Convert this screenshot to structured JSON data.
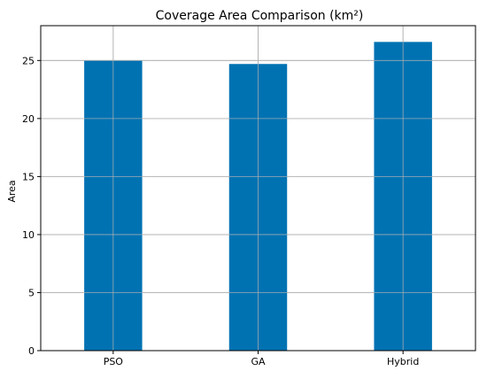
{
  "chart_data": {
    "type": "bar",
    "title": "Coverage Area Comparison (km²)",
    "xlabel": "",
    "ylabel": "Area",
    "categories": [
      "PSO",
      "GA",
      "Hybrid"
    ],
    "values": [
      25.0,
      24.7,
      26.6
    ],
    "ylim": [
      0,
      28
    ],
    "yticks": [
      0,
      5,
      10,
      15,
      20,
      25
    ],
    "grid": true,
    "bar_color": "#0072b2"
  }
}
